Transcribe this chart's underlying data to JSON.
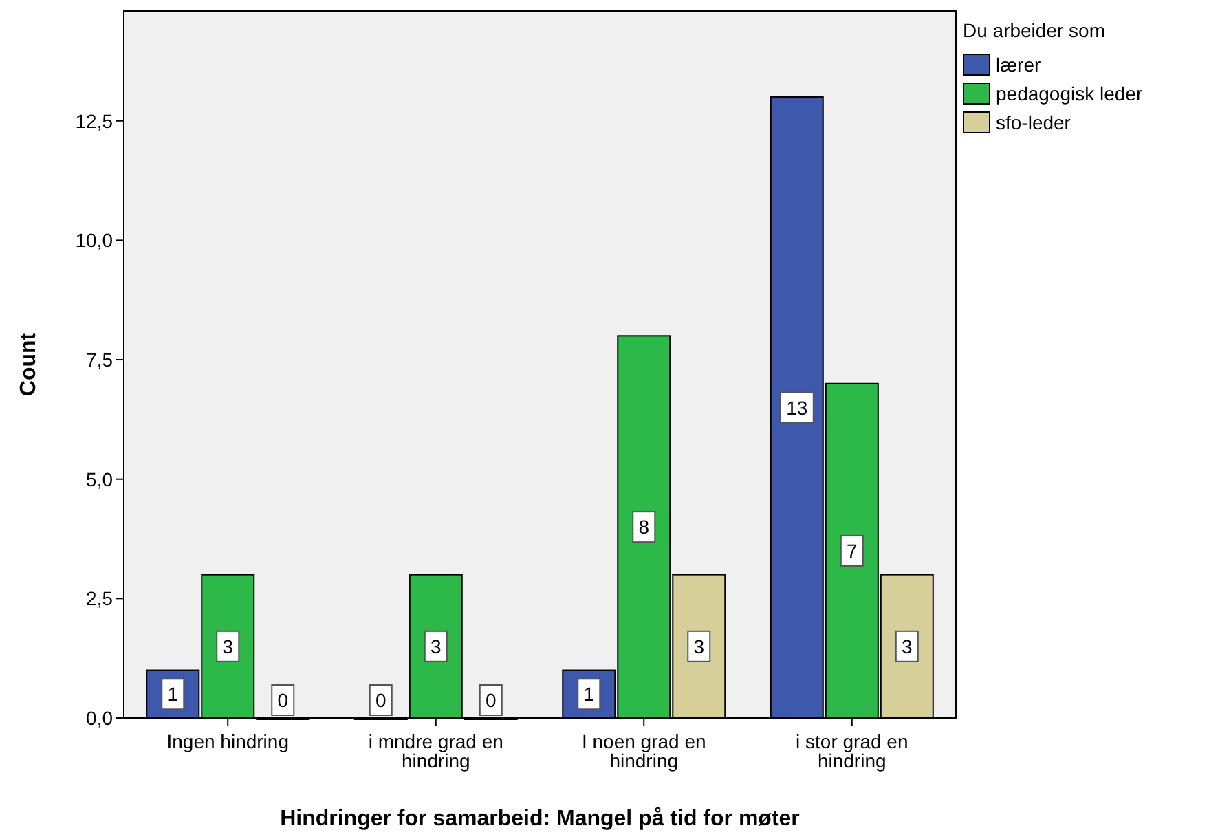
{
  "chart_data": {
    "type": "bar",
    "xlabel": "Hindringer for samarbeid: Mangel på tid for møter",
    "ylabel": "Count",
    "legend_title": "Du arbeider som",
    "categories": [
      "Ingen hindring",
      "i mndre grad en hindring",
      "I noen grad en hindring",
      "i stor grad en hindring"
    ],
    "series": [
      {
        "name": "lærer",
        "color": "#3e58ac",
        "values": [
          1,
          0,
          1,
          13
        ]
      },
      {
        "name": "pedagogisk leder",
        "color": "#2db84a",
        "values": [
          3,
          3,
          8,
          7
        ]
      },
      {
        "name": "sfo-leder",
        "color": "#d6cf9a",
        "values": [
          0,
          0,
          3,
          3
        ]
      }
    ],
    "ylim": [
      0,
      14.8
    ],
    "yticks": [
      {
        "value": 0,
        "label": "0,0"
      },
      {
        "value": 2.5,
        "label": "2,5"
      },
      {
        "value": 5,
        "label": "5,0"
      },
      {
        "value": 7.5,
        "label": "7,5"
      },
      {
        "value": 10,
        "label": "10,0"
      },
      {
        "value": 12.5,
        "label": "12,5"
      }
    ],
    "data_labels": true,
    "legend": "top right"
  }
}
